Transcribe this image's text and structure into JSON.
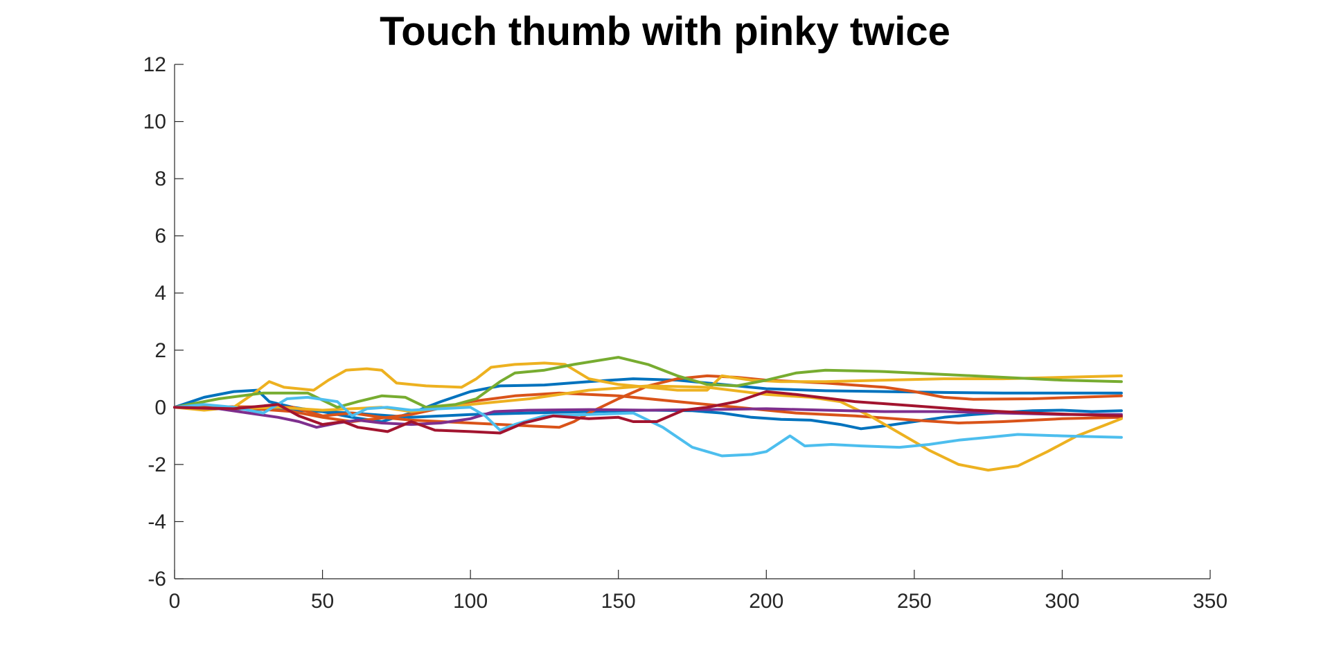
{
  "chart_data": {
    "type": "line",
    "title": "Touch thumb with pinky twice",
    "xlabel": "",
    "ylabel": "",
    "xlim": [
      0,
      350
    ],
    "ylim": [
      -6,
      12
    ],
    "xticks": [
      0,
      50,
      100,
      150,
      200,
      250,
      300,
      350
    ],
    "yticks": [
      -6,
      -4,
      -2,
      0,
      2,
      4,
      6,
      8,
      10,
      12
    ],
    "grid": false,
    "legend": "none",
    "series": [
      {
        "color": "#0072BD",
        "points": [
          [
            0,
            0
          ],
          [
            10,
            0.35
          ],
          [
            20,
            0.55
          ],
          [
            28,
            0.6
          ],
          [
            32,
            0.2
          ],
          [
            40,
            0.0
          ],
          [
            50,
            -0.15
          ],
          [
            60,
            -0.35
          ],
          [
            70,
            -0.5
          ],
          [
            80,
            -0.2
          ],
          [
            90,
            0.2
          ],
          [
            100,
            0.55
          ],
          [
            110,
            0.75
          ],
          [
            125,
            0.78
          ],
          [
            140,
            0.9
          ],
          [
            155,
            1.0
          ],
          [
            170,
            0.95
          ],
          [
            185,
            0.8
          ],
          [
            200,
            0.65
          ],
          [
            220,
            0.58
          ],
          [
            240,
            0.55
          ],
          [
            260,
            0.52
          ],
          [
            280,
            0.5
          ],
          [
            300,
            0.5
          ],
          [
            320,
            0.5
          ]
        ]
      },
      {
        "color": "#0072BD",
        "points": [
          [
            0,
            0
          ],
          [
            20,
            -0.05
          ],
          [
            40,
            -0.1
          ],
          [
            60,
            -0.2
          ],
          [
            80,
            -0.35
          ],
          [
            100,
            -0.25
          ],
          [
            120,
            -0.2
          ],
          [
            140,
            -0.15
          ],
          [
            160,
            -0.1
          ],
          [
            175,
            -0.12
          ],
          [
            185,
            -0.2
          ],
          [
            195,
            -0.35
          ],
          [
            205,
            -0.42
          ],
          [
            215,
            -0.45
          ],
          [
            225,
            -0.6
          ],
          [
            232,
            -0.75
          ],
          [
            240,
            -0.65
          ],
          [
            250,
            -0.5
          ],
          [
            260,
            -0.35
          ],
          [
            270,
            -0.25
          ],
          [
            280,
            -0.18
          ],
          [
            290,
            -0.12
          ],
          [
            300,
            -0.1
          ],
          [
            310,
            -0.15
          ],
          [
            320,
            -0.12
          ]
        ]
      },
      {
        "color": "#D95319",
        "points": [
          [
            0,
            0
          ],
          [
            20,
            0.02
          ],
          [
            40,
            0.0
          ],
          [
            50,
            -0.3
          ],
          [
            60,
            -0.2
          ],
          [
            70,
            -0.35
          ],
          [
            80,
            -0.45
          ],
          [
            100,
            -0.55
          ],
          [
            120,
            -0.65
          ],
          [
            130,
            -0.7
          ],
          [
            135,
            -0.5
          ],
          [
            140,
            -0.2
          ],
          [
            150,
            0.3
          ],
          [
            160,
            0.75
          ],
          [
            170,
            1.0
          ],
          [
            180,
            1.1
          ],
          [
            190,
            1.05
          ],
          [
            200,
            0.95
          ],
          [
            220,
            0.85
          ],
          [
            240,
            0.7
          ],
          [
            250,
            0.55
          ],
          [
            260,
            0.35
          ],
          [
            270,
            0.28
          ],
          [
            290,
            0.3
          ],
          [
            320,
            0.4
          ]
        ]
      },
      {
        "color": "#D95319",
        "points": [
          [
            0,
            0
          ],
          [
            20,
            0.0
          ],
          [
            40,
            -0.15
          ],
          [
            50,
            -0.35
          ],
          [
            60,
            -0.5
          ],
          [
            80,
            -0.25
          ],
          [
            100,
            0.2
          ],
          [
            115,
            0.4
          ],
          [
            130,
            0.5
          ],
          [
            150,
            0.4
          ],
          [
            170,
            0.2
          ],
          [
            190,
            0.0
          ],
          [
            210,
            -0.2
          ],
          [
            230,
            -0.3
          ],
          [
            250,
            -0.45
          ],
          [
            265,
            -0.55
          ],
          [
            280,
            -0.5
          ],
          [
            300,
            -0.4
          ],
          [
            320,
            -0.35
          ]
        ]
      },
      {
        "color": "#EDB120",
        "points": [
          [
            0,
            0
          ],
          [
            10,
            -0.1
          ],
          [
            20,
            0.0
          ],
          [
            27,
            0.5
          ],
          [
            32,
            0.9
          ],
          [
            37,
            0.7
          ],
          [
            47,
            0.6
          ],
          [
            52,
            0.95
          ],
          [
            58,
            1.3
          ],
          [
            65,
            1.35
          ],
          [
            70,
            1.3
          ],
          [
            75,
            0.85
          ],
          [
            85,
            0.75
          ],
          [
            97,
            0.7
          ],
          [
            102,
            1.0
          ],
          [
            107,
            1.4
          ],
          [
            115,
            1.5
          ],
          [
            125,
            1.55
          ],
          [
            132,
            1.5
          ],
          [
            140,
            1.0
          ],
          [
            150,
            0.8
          ],
          [
            160,
            0.7
          ],
          [
            170,
            0.6
          ],
          [
            180,
            0.6
          ],
          [
            185,
            1.1
          ],
          [
            195,
            0.95
          ],
          [
            205,
            0.9
          ],
          [
            220,
            0.9
          ],
          [
            240,
            0.95
          ],
          [
            260,
            1.0
          ],
          [
            280,
            1.0
          ],
          [
            300,
            1.05
          ],
          [
            320,
            1.1
          ]
        ]
      },
      {
        "color": "#EDB120",
        "points": [
          [
            0,
            0
          ],
          [
            20,
            -0.05
          ],
          [
            35,
            0.0
          ],
          [
            50,
            -0.1
          ],
          [
            60,
            -0.05
          ],
          [
            70,
            0.0
          ],
          [
            80,
            -0.15
          ],
          [
            100,
            0.1
          ],
          [
            120,
            0.3
          ],
          [
            140,
            0.6
          ],
          [
            160,
            0.75
          ],
          [
            180,
            0.7
          ],
          [
            200,
            0.45
          ],
          [
            215,
            0.35
          ],
          [
            225,
            0.2
          ],
          [
            235,
            -0.3
          ],
          [
            245,
            -0.9
          ],
          [
            255,
            -1.5
          ],
          [
            265,
            -2.0
          ],
          [
            275,
            -2.2
          ],
          [
            285,
            -2.05
          ],
          [
            295,
            -1.55
          ],
          [
            305,
            -1.0
          ],
          [
            315,
            -0.6
          ],
          [
            320,
            -0.4
          ]
        ]
      },
      {
        "color": "#7E2F8E",
        "points": [
          [
            0,
            0
          ],
          [
            15,
            -0.05
          ],
          [
            25,
            -0.2
          ],
          [
            35,
            -0.35
          ],
          [
            42,
            -0.5
          ],
          [
            48,
            -0.7
          ],
          [
            55,
            -0.55
          ],
          [
            62,
            -0.45
          ],
          [
            70,
            -0.55
          ],
          [
            80,
            -0.6
          ],
          [
            90,
            -0.55
          ],
          [
            100,
            -0.4
          ],
          [
            108,
            -0.15
          ],
          [
            120,
            -0.1
          ],
          [
            140,
            -0.08
          ],
          [
            160,
            -0.1
          ],
          [
            180,
            -0.08
          ],
          [
            200,
            -0.05
          ],
          [
            220,
            -0.1
          ],
          [
            240,
            -0.15
          ],
          [
            260,
            -0.15
          ],
          [
            280,
            -0.2
          ],
          [
            300,
            -0.25
          ],
          [
            320,
            -0.25
          ]
        ]
      },
      {
        "color": "#77AC30",
        "points": [
          [
            0,
            0
          ],
          [
            15,
            0.3
          ],
          [
            30,
            0.5
          ],
          [
            45,
            0.5
          ],
          [
            55,
            0.0
          ],
          [
            62,
            0.2
          ],
          [
            70,
            0.4
          ],
          [
            78,
            0.35
          ],
          [
            85,
            0.0
          ],
          [
            95,
            0.1
          ],
          [
            102,
            0.3
          ],
          [
            110,
            0.9
          ],
          [
            115,
            1.2
          ],
          [
            125,
            1.3
          ],
          [
            135,
            1.5
          ],
          [
            150,
            1.75
          ],
          [
            160,
            1.5
          ],
          [
            170,
            1.1
          ],
          [
            180,
            0.8
          ],
          [
            190,
            0.75
          ],
          [
            200,
            0.95
          ],
          [
            210,
            1.2
          ],
          [
            220,
            1.3
          ],
          [
            240,
            1.25
          ],
          [
            260,
            1.15
          ],
          [
            280,
            1.05
          ],
          [
            300,
            0.95
          ],
          [
            320,
            0.9
          ]
        ]
      },
      {
        "color": "#4DBEEE",
        "points": [
          [
            0,
            0
          ],
          [
            10,
            0.1
          ],
          [
            20,
            0.0
          ],
          [
            30,
            -0.2
          ],
          [
            38,
            0.3
          ],
          [
            45,
            0.35
          ],
          [
            55,
            0.2
          ],
          [
            60,
            -0.3
          ],
          [
            65,
            -0.05
          ],
          [
            72,
            0.0
          ],
          [
            80,
            -0.1
          ],
          [
            90,
            -0.05
          ],
          [
            100,
            0.0
          ],
          [
            105,
            -0.3
          ],
          [
            110,
            -0.8
          ],
          [
            115,
            -0.6
          ],
          [
            125,
            -0.3
          ],
          [
            140,
            -0.25
          ],
          [
            155,
            -0.2
          ],
          [
            165,
            -0.7
          ],
          [
            175,
            -1.4
          ],
          [
            185,
            -1.7
          ],
          [
            195,
            -1.65
          ],
          [
            200,
            -1.55
          ],
          [
            208,
            -1.0
          ],
          [
            213,
            -1.35
          ],
          [
            222,
            -1.3
          ],
          [
            232,
            -1.35
          ],
          [
            245,
            -1.4
          ],
          [
            255,
            -1.3
          ],
          [
            265,
            -1.15
          ],
          [
            275,
            -1.05
          ],
          [
            285,
            -0.95
          ],
          [
            300,
            -1.0
          ],
          [
            320,
            -1.05
          ]
        ]
      },
      {
        "color": "#A2142F",
        "points": [
          [
            0,
            0
          ],
          [
            20,
            -0.05
          ],
          [
            35,
            0.1
          ],
          [
            42,
            -0.3
          ],
          [
            50,
            -0.6
          ],
          [
            57,
            -0.5
          ],
          [
            62,
            -0.7
          ],
          [
            72,
            -0.85
          ],
          [
            80,
            -0.5
          ],
          [
            88,
            -0.8
          ],
          [
            100,
            -0.85
          ],
          [
            110,
            -0.9
          ],
          [
            118,
            -0.55
          ],
          [
            128,
            -0.3
          ],
          [
            140,
            -0.4
          ],
          [
            150,
            -0.35
          ],
          [
            155,
            -0.5
          ],
          [
            163,
            -0.5
          ],
          [
            172,
            -0.1
          ],
          [
            180,
            0.0
          ],
          [
            190,
            0.2
          ],
          [
            200,
            0.55
          ],
          [
            210,
            0.45
          ],
          [
            230,
            0.2
          ],
          [
            250,
            0.05
          ],
          [
            270,
            -0.1
          ],
          [
            290,
            -0.2
          ],
          [
            305,
            -0.25
          ],
          [
            320,
            -0.3
          ]
        ]
      }
    ]
  }
}
